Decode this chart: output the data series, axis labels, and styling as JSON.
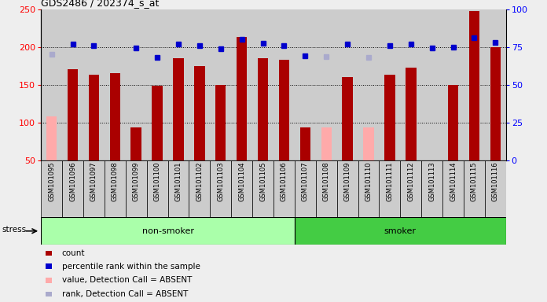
{
  "title": "GDS2486 / 202374_s_at",
  "samples": [
    "GSM101095",
    "GSM101096",
    "GSM101097",
    "GSM101098",
    "GSM101099",
    "GSM101100",
    "GSM101101",
    "GSM101102",
    "GSM101103",
    "GSM101104",
    "GSM101105",
    "GSM101106",
    "GSM101107",
    "GSM101108",
    "GSM101109",
    "GSM101110",
    "GSM101111",
    "GSM101112",
    "GSM101113",
    "GSM101114",
    "GSM101115",
    "GSM101116"
  ],
  "count_values": [
    108,
    170,
    163,
    165,
    93,
    148,
    185,
    175,
    150,
    213,
    185,
    183,
    93,
    93,
    160,
    93,
    163,
    172,
    null,
    150,
    247,
    200
  ],
  "count_absent": [
    true,
    false,
    false,
    false,
    false,
    false,
    false,
    false,
    false,
    false,
    false,
    false,
    false,
    true,
    false,
    true,
    false,
    false,
    false,
    false,
    false,
    false
  ],
  "rank_values": [
    190,
    204,
    202,
    null,
    198,
    186,
    204,
    202,
    197,
    210,
    205,
    202,
    188,
    187,
    204,
    186,
    202,
    204,
    198,
    199,
    212,
    206
  ],
  "rank_absent": [
    true,
    false,
    false,
    false,
    false,
    false,
    false,
    false,
    false,
    false,
    false,
    false,
    false,
    true,
    false,
    true,
    false,
    false,
    false,
    false,
    false,
    false
  ],
  "non_smoker_count": 12,
  "ylim_left": [
    50,
    250
  ],
  "ylim_right": [
    0,
    100
  ],
  "yticks_left": [
    50,
    100,
    150,
    200,
    250
  ],
  "yticks_right": [
    0,
    25,
    50,
    75,
    100
  ],
  "grid_values": [
    100,
    150,
    200
  ],
  "bar_color_present": "#aa0000",
  "bar_color_absent": "#ffaaaa",
  "dot_color_present": "#0000cc",
  "dot_color_absent": "#aaaacc",
  "non_smoker_color": "#aaffaa",
  "smoker_color": "#44cc44",
  "col_bg_color": "#cccccc",
  "fig_bg_color": "#eeeeee",
  "plot_bg": "#ffffff"
}
